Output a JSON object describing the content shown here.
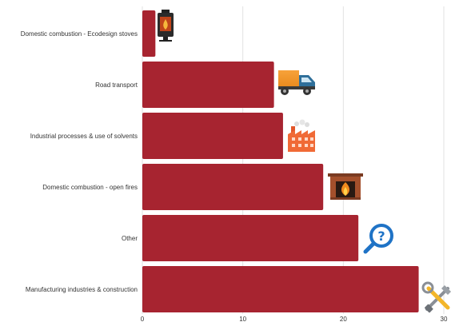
{
  "chart_data": {
    "type": "bar",
    "orientation": "horizontal",
    "categories": [
      "Domestic combustion - Ecodesign stoves",
      "Road transport",
      "Industrial processes & use of solvents",
      "Domestic combustion - open fires",
      "Other",
      "Manufacturing industries & construction"
    ],
    "values": [
      1.3,
      13.1,
      14.0,
      18.0,
      21.5,
      27.5
    ],
    "icons": [
      "stove-icon",
      "truck-icon",
      "factory-icon",
      "fireplace-icon",
      "question-magnifier-icon",
      "tools-icon"
    ],
    "xticks": [
      "0",
      "10",
      "20",
      "30"
    ],
    "xlim": [
      0,
      30
    ],
    "grid": true,
    "bar_color": "#a72430",
    "grid_color": "#e2e2e2"
  }
}
